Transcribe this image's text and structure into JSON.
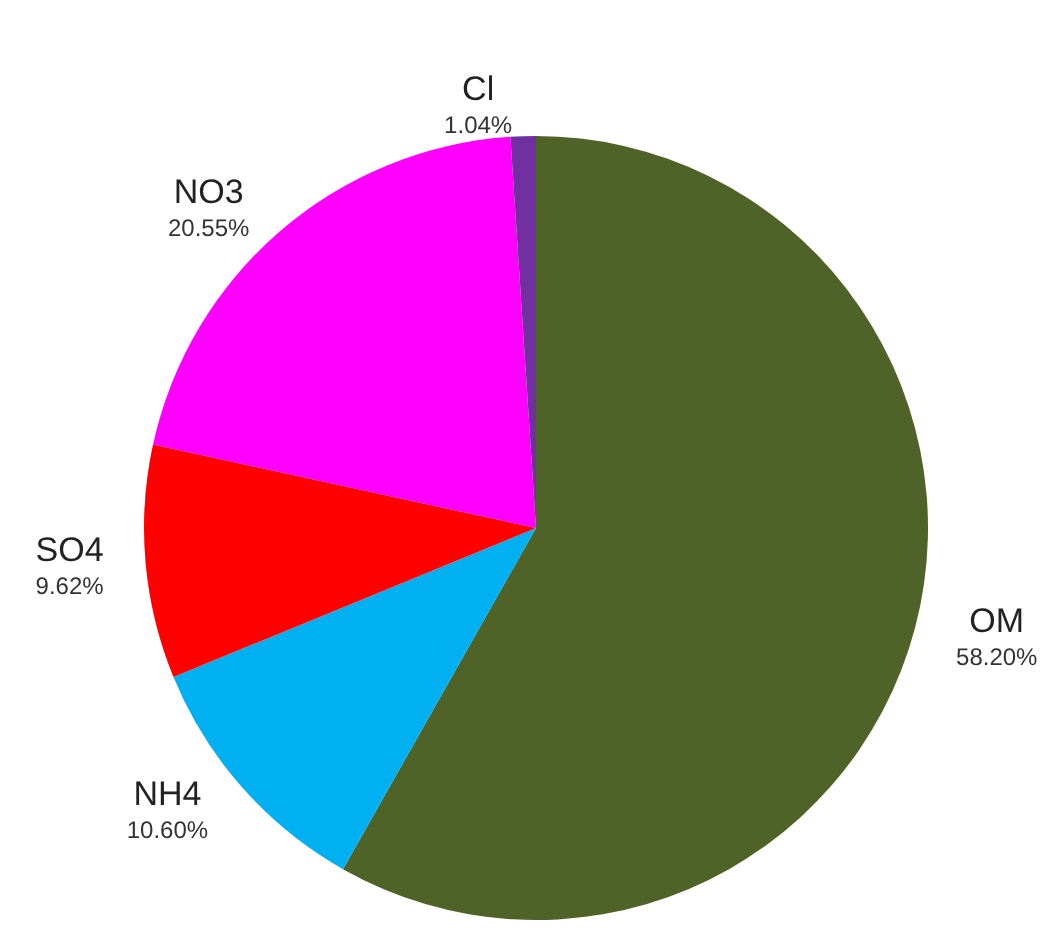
{
  "chart_data": {
    "type": "pie",
    "categories": [
      "OM",
      "NH4",
      "SO4",
      "NO3",
      "Cl"
    ],
    "values": [
      58.2,
      10.6,
      9.62,
      20.55,
      1.04
    ],
    "value_labels": [
      "58.20%",
      "10.60%",
      "9.62%",
      "20.55%",
      "1.04%"
    ],
    "colors": [
      "#4f6228",
      "#00b0f0",
      "#ff0000",
      "#ff00ff",
      "#7030a0"
    ],
    "legend": false
  }
}
